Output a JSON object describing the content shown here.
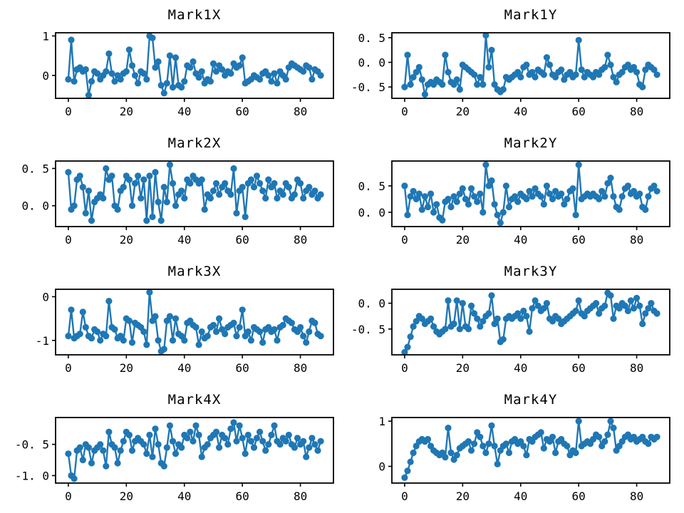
{
  "figure": {
    "background": "#ffffff",
    "accent_color": "#1f77b4",
    "axis_color": "#000000",
    "grid": false,
    "legend": null,
    "xlim": [
      -4.4,
      91.4
    ],
    "x_ticks": {
      "values": [
        0,
        20,
        40,
        60,
        80
      ],
      "labels": [
        "0",
        "20",
        "40",
        "60",
        "80"
      ]
    }
  },
  "chart_data": [
    {
      "type": "line",
      "marker": "circle",
      "title": "Mark1X",
      "ylim": [
        -0.58,
        1.08
      ],
      "y_ticks": [
        {
          "v": 1,
          "label": "1"
        },
        {
          "v": 0,
          "label": "0"
        }
      ],
      "x_start": 0,
      "x_step": 1,
      "values": [
        -0.1,
        0.9,
        -0.15,
        0.15,
        0.2,
        0.1,
        0.15,
        -0.5,
        -0.15,
        0.1,
        0.05,
        -0.1,
        0,
        0.1,
        0.55,
        0.05,
        -0.15,
        0,
        -0.1,
        0.05,
        0.1,
        0.65,
        0.25,
        0,
        -0.2,
        0.1,
        0.05,
        -0.1,
        1,
        0.95,
        0.2,
        0.35,
        -0.25,
        -0.45,
        -0.2,
        0.5,
        -0.3,
        0.45,
        -0.25,
        -0.3,
        -0.15,
        0.25,
        0.2,
        0.35,
        0.05,
        -0.05,
        0.1,
        -0.2,
        -0.1,
        -0.15,
        0.3,
        0.1,
        0.25,
        0.15,
        0,
        0.1,
        0.05,
        0.3,
        0.2,
        0.25,
        0.45,
        -0.2,
        -0.15,
        -0.1,
        0,
        -0.05,
        -0.1,
        0.05,
        0.1,
        0,
        -0.15,
        0.05,
        -0.2,
        0.1,
        0,
        -0.1,
        0.2,
        0.3,
        0.25,
        0.2,
        0.15,
        0.1,
        0.25,
        0.2,
        -0.1,
        0.15,
        0.1,
        0
      ]
    },
    {
      "type": "line",
      "marker": "circle",
      "title": "Mark1Y",
      "ylim": [
        -0.73,
        0.6
      ],
      "y_ticks": [
        {
          "v": 0.5,
          "label": "0. 5"
        },
        {
          "v": 0,
          "label": "0. 0"
        },
        {
          "v": -0.5,
          "label": "-0. 5"
        }
      ],
      "x_start": 0,
      "x_step": 1,
      "values": [
        -0.5,
        0.15,
        -0.45,
        -0.3,
        -0.2,
        -0.1,
        -0.35,
        -0.65,
        -0.45,
        -0.4,
        -0.45,
        -0.35,
        -0.4,
        -0.45,
        0.15,
        -0.2,
        -0.4,
        -0.45,
        -0.35,
        -0.55,
        -0.05,
        -0.1,
        -0.15,
        -0.2,
        -0.25,
        -0.45,
        -0.3,
        -0.45,
        0.55,
        -0.1,
        0.25,
        -0.45,
        -0.55,
        -0.6,
        -0.55,
        -0.3,
        -0.35,
        -0.3,
        -0.25,
        -0.2,
        -0.3,
        -0.1,
        -0.05,
        -0.25,
        -0.2,
        -0.3,
        -0.15,
        -0.2,
        -0.25,
        0.1,
        -0.05,
        -0.25,
        -0.3,
        -0.2,
        -0.15,
        -0.35,
        -0.25,
        -0.2,
        -0.3,
        -0.25,
        0.45,
        -0.15,
        -0.3,
        -0.2,
        -0.25,
        -0.3,
        -0.2,
        -0.25,
        -0.15,
        -0.1,
        0.15,
        -0.05,
        -0.3,
        -0.4,
        -0.25,
        -0.2,
        -0.1,
        -0.05,
        -0.15,
        -0.1,
        -0.2,
        -0.45,
        -0.5,
        -0.15,
        -0.05,
        -0.1,
        -0.15,
        -0.25
      ]
    },
    {
      "type": "line",
      "marker": "circle",
      "title": "Mark2X",
      "ylim": [
        -0.28,
        0.6
      ],
      "y_ticks": [
        {
          "v": 0.5,
          "label": "0. 5"
        },
        {
          "v": 0,
          "label": "0. 0"
        }
      ],
      "x_start": 0,
      "x_step": 1,
      "values": [
        0.45,
        -0.05,
        0,
        0.35,
        0.4,
        0.25,
        -0.1,
        0.2,
        -0.2,
        0.05,
        0.1,
        0.15,
        0.1,
        0.5,
        0.35,
        0.4,
        0,
        -0.05,
        0.2,
        0.25,
        0.4,
        0.35,
        0,
        0.3,
        0.4,
        0.1,
        0.35,
        -0.2,
        0.4,
        -0.15,
        0.45,
        0.05,
        -0.2,
        0.25,
        0.05,
        0.55,
        0.3,
        0,
        0.15,
        0.2,
        0.1,
        0.35,
        0.3,
        0.4,
        0.35,
        0.3,
        0.35,
        -0.05,
        0.15,
        0.1,
        0.2,
        0.3,
        0.15,
        0.25,
        0.3,
        0.2,
        0.15,
        0.5,
        -0.1,
        0.2,
        0.25,
        -0.15,
        0.3,
        0.35,
        0.25,
        0.4,
        0.3,
        0.2,
        0.1,
        0.35,
        0.25,
        0.3,
        0.1,
        0.2,
        0.15,
        0.3,
        0.25,
        0.1,
        0.15,
        0.35,
        0.3,
        0.1,
        0.2,
        0.25,
        0.15,
        0.2,
        0.1,
        0.15
      ]
    },
    {
      "type": "line",
      "marker": "circle",
      "title": "Mark2Y",
      "ylim": [
        -0.27,
        0.97
      ],
      "y_ticks": [
        {
          "v": 0.5,
          "label": "0. 5"
        },
        {
          "v": 0,
          "label": "0. 0"
        }
      ],
      "x_start": 0,
      "x_step": 1,
      "values": [
        0.5,
        -0.05,
        0.3,
        0.4,
        0.25,
        0.35,
        0.05,
        0.3,
        0.1,
        0.35,
        0,
        0.15,
        -0.1,
        -0.15,
        0.2,
        0.25,
        0.1,
        0.3,
        0.2,
        0.35,
        0.45,
        0.25,
        0.15,
        0.45,
        0.3,
        0.2,
        0.35,
        0,
        0.9,
        0.5,
        0.6,
        0.15,
        -0.05,
        -0.2,
        0,
        0.5,
        0.1,
        0.25,
        0.3,
        0.2,
        0.35,
        0.3,
        0.25,
        0.4,
        0.3,
        0.45,
        0.35,
        0.3,
        0.15,
        0.5,
        0.35,
        0.25,
        0.4,
        0.3,
        0.35,
        0.15,
        0.25,
        0.4,
        0.45,
        -0.05,
        0.9,
        0.25,
        0.3,
        0.35,
        0.3,
        0.35,
        0.3,
        0.25,
        0.4,
        0.3,
        0.55,
        0.65,
        0.3,
        0.1,
        0.05,
        0.3,
        0.45,
        0.5,
        0.35,
        0.4,
        0.3,
        0.35,
        0.1,
        0.05,
        0.3,
        0.45,
        0.5,
        0.4
      ]
    },
    {
      "type": "line",
      "marker": "circle",
      "title": "Mark3X",
      "ylim": [
        -1.33,
        0.17
      ],
      "y_ticks": [
        {
          "v": 0,
          "label": "0"
        },
        {
          "v": -1,
          "label": "-1"
        }
      ],
      "x_start": 0,
      "x_step": 1,
      "values": [
        -0.9,
        -0.3,
        -0.95,
        -0.9,
        -0.85,
        -0.35,
        -0.7,
        -0.9,
        -0.95,
        -0.75,
        -0.8,
        -1,
        -0.85,
        -0.9,
        -0.1,
        -0.7,
        -0.75,
        -0.95,
        -0.9,
        -1,
        -0.5,
        -0.55,
        -1.05,
        -0.6,
        -0.65,
        -0.7,
        -0.8,
        -1.1,
        0.1,
        -0.55,
        -0.45,
        -1,
        -1.25,
        -1.2,
        -0.55,
        -0.45,
        -1,
        -0.5,
        -0.85,
        -0.9,
        -1,
        -0.6,
        -0.55,
        -0.65,
        -0.7,
        -1.1,
        -0.8,
        -0.95,
        -0.9,
        -0.7,
        -0.65,
        -0.8,
        -0.5,
        -0.75,
        -0.85,
        -0.7,
        -0.65,
        -0.6,
        -0.9,
        -0.7,
        -0.3,
        -0.9,
        -0.8,
        -1,
        -0.7,
        -0.75,
        -0.8,
        -1.05,
        -0.75,
        -0.7,
        -0.8,
        -0.75,
        -1,
        -0.7,
        -0.65,
        -0.5,
        -0.55,
        -0.6,
        -0.75,
        -0.8,
        -0.7,
        -0.9,
        -1.05,
        -0.8,
        -0.55,
        -0.6,
        -0.85,
        -0.9
      ]
    },
    {
      "type": "line",
      "marker": "circle",
      "title": "Mark3Y",
      "ylim": [
        -1.0,
        0.27
      ],
      "y_ticks": [
        {
          "v": 0,
          "label": "0. 0"
        },
        {
          "v": -0.5,
          "label": "-0. 5"
        }
      ],
      "x_start": 0,
      "x_step": 1,
      "values": [
        -0.95,
        -0.85,
        -0.65,
        -0.45,
        -0.35,
        -0.25,
        -0.3,
        -0.4,
        -0.35,
        -0.3,
        -0.45,
        -0.55,
        -0.6,
        -0.55,
        -0.5,
        0.05,
        -0.45,
        -0.4,
        0.05,
        -0.5,
        0,
        -0.45,
        -0.5,
        -0.05,
        -0.2,
        -0.3,
        -0.45,
        -0.35,
        -0.25,
        -0.2,
        0.15,
        -0.4,
        -0.3,
        -0.75,
        -0.7,
        -0.3,
        -0.25,
        -0.3,
        -0.25,
        -0.2,
        -0.3,
        -0.15,
        -0.25,
        -0.55,
        -0.1,
        0.05,
        -0.05,
        -0.15,
        -0.1,
        0,
        -0.3,
        -0.35,
        -0.25,
        -0.3,
        -0.4,
        -0.35,
        -0.3,
        -0.25,
        -0.2,
        -0.15,
        0.05,
        -0.2,
        -0.25,
        -0.15,
        -0.1,
        -0.05,
        0,
        -0.2,
        -0.1,
        -0.05,
        0.2,
        0.15,
        -0.3,
        -0.05,
        -0.1,
        0,
        -0.05,
        -0.15,
        0.05,
        -0.1,
        0.1,
        -0.05,
        -0.4,
        -0.2,
        -0.1,
        0,
        -0.15,
        -0.2
      ]
    },
    {
      "type": "line",
      "marker": "circle",
      "title": "Mark4X",
      "ylim": [
        -1.12,
        -0.07
      ],
      "y_ticks": [
        {
          "v": -0.5,
          "label": "-0. 5"
        },
        {
          "v": -1,
          "label": "-1. 0"
        }
      ],
      "x_start": 0,
      "x_step": 1,
      "values": [
        -0.65,
        -1,
        -1.05,
        -0.6,
        -0.55,
        -0.75,
        -0.5,
        -0.55,
        -0.8,
        -0.6,
        -0.55,
        -0.5,
        -0.6,
        -0.85,
        -0.3,
        -0.5,
        -0.55,
        -0.8,
        -0.6,
        -0.45,
        -0.3,
        -0.35,
        -0.6,
        -0.45,
        -0.4,
        -0.45,
        -0.5,
        -0.65,
        -0.35,
        -0.7,
        -0.25,
        -0.5,
        -0.8,
        -0.85,
        -0.55,
        -0.2,
        -0.45,
        -0.65,
        -0.5,
        -0.55,
        -0.35,
        -0.4,
        -0.3,
        -0.45,
        -0.2,
        -0.35,
        -0.7,
        -0.55,
        -0.5,
        -0.4,
        -0.35,
        -0.3,
        -0.55,
        -0.35,
        -0.4,
        -0.5,
        -0.25,
        -0.15,
        -0.45,
        -0.2,
        -0.4,
        -0.65,
        -0.35,
        -0.45,
        -0.55,
        -0.4,
        -0.3,
        -0.45,
        -0.6,
        -0.5,
        -0.35,
        -0.2,
        -0.45,
        -0.5,
        -0.4,
        -0.45,
        -0.35,
        -0.5,
        -0.55,
        -0.4,
        -0.5,
        -0.45,
        -0.7,
        -0.55,
        -0.4,
        -0.5,
        -0.6,
        -0.45
      ]
    },
    {
      "type": "line",
      "marker": "circle",
      "title": "Mark4Y",
      "ylim": [
        -0.37,
        1.08
      ],
      "y_ticks": [
        {
          "v": 1,
          "label": "1"
        },
        {
          "v": 0,
          "label": "0"
        }
      ],
      "x_start": 0,
      "x_step": 1,
      "values": [
        -0.25,
        -0.1,
        0.1,
        0.3,
        0.45,
        0.55,
        0.6,
        0.55,
        0.6,
        0.45,
        0.35,
        0.3,
        0.25,
        0.3,
        0.2,
        0.85,
        0.3,
        0.15,
        0.25,
        0.4,
        0.45,
        0.5,
        0.55,
        0.35,
        0.5,
        0.75,
        0.65,
        0.45,
        0.3,
        0.5,
        0.9,
        0.45,
        0.05,
        0.35,
        0.45,
        0.5,
        0.3,
        0.55,
        0.6,
        0.5,
        0.55,
        0.45,
        0.25,
        0.6,
        0.55,
        0.65,
        0.7,
        0.75,
        0.4,
        0.6,
        0.55,
        0.65,
        0.3,
        0.55,
        0.6,
        0.5,
        0.45,
        0.25,
        0.35,
        0.3,
        1,
        0.45,
        0.5,
        0.55,
        0.5,
        0.6,
        0.7,
        0.65,
        0.45,
        0.55,
        0.7,
        1,
        0.85,
        0.35,
        0.45,
        0.55,
        0.65,
        0.7,
        0.6,
        0.65,
        0.55,
        0.6,
        0.65,
        0.55,
        0.5,
        0.65,
        0.6,
        0.65
      ]
    }
  ]
}
